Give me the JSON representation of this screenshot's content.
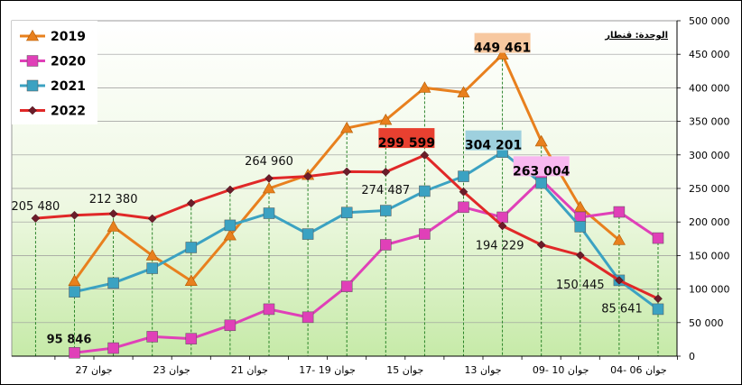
{
  "chart_data": {
    "type": "line",
    "unit_label": "الوحدة: قنطار",
    "y_axis": {
      "min": 0,
      "max": 500000,
      "ticks": [
        "0",
        "50 000",
        "100 000",
        "150 000",
        "200 000",
        "250 000",
        "300 000",
        "350 000",
        "400 000",
        "450 000",
        "500 000"
      ],
      "position": "right"
    },
    "x_axis": {
      "reversed": true,
      "slots": 16,
      "tick_labels": [
        {
          "slot": 1,
          "label": "04- 06 جوان"
        },
        {
          "slot": 3,
          "label": "09- 10 جوان"
        },
        {
          "slot": 5,
          "label": "13 جوان"
        },
        {
          "slot": 7,
          "label": "15 جوان"
        },
        {
          "slot": 9,
          "label": "17- 19 جوان"
        },
        {
          "slot": 11,
          "label": "21 جوان"
        },
        {
          "slot": 13,
          "label": "23 جوان"
        },
        {
          "slot": 15,
          "label": "27 جوان"
        }
      ]
    },
    "grid": true,
    "legend": {
      "placement": "top-left",
      "entries": [
        "2019",
        "2020",
        "2021",
        "2022"
      ]
    },
    "series": [
      {
        "name": "2019",
        "color": "#E8801E",
        "marker": "triangle",
        "points": [
          {
            "slot": 1,
            "value": 173000
          },
          {
            "slot": 2,
            "value": 222000
          },
          {
            "slot": 3,
            "value": 320000
          },
          {
            "slot": 4,
            "value": 449461
          },
          {
            "slot": 5,
            "value": 393000
          },
          {
            "slot": 6,
            "value": 400000
          },
          {
            "slot": 7,
            "value": 352000
          },
          {
            "slot": 8,
            "value": 340000
          },
          {
            "slot": 9,
            "value": 270000
          },
          {
            "slot": 10,
            "value": 250000
          },
          {
            "slot": 11,
            "value": 180000
          },
          {
            "slot": 12,
            "value": 112000
          },
          {
            "slot": 13,
            "value": 150000
          },
          {
            "slot": 14,
            "value": 193000
          },
          {
            "slot": 15,
            "value": 112000
          }
        ]
      },
      {
        "name": "2020",
        "color": "#E040B8",
        "marker": "square",
        "points": [
          {
            "slot": 0,
            "value": 176000
          },
          {
            "slot": 1,
            "value": 215000
          },
          {
            "slot": 2,
            "value": 207000
          },
          {
            "slot": 3,
            "value": 263004
          },
          {
            "slot": 4,
            "value": 207000
          },
          {
            "slot": 5,
            "value": 222000
          },
          {
            "slot": 6,
            "value": 182000
          },
          {
            "slot": 7,
            "value": 166000
          },
          {
            "slot": 8,
            "value": 104000
          },
          {
            "slot": 9,
            "value": 58000
          },
          {
            "slot": 10,
            "value": 70000
          },
          {
            "slot": 11,
            "value": 46000
          },
          {
            "slot": 12,
            "value": 26000
          },
          {
            "slot": 13,
            "value": 29000
          },
          {
            "slot": 14,
            "value": 12000
          },
          {
            "slot": 15,
            "value": 5000
          }
        ]
      },
      {
        "name": "2021",
        "color": "#3BA2C2",
        "marker": "square",
        "points": [
          {
            "slot": 0,
            "value": 70000
          },
          {
            "slot": 1,
            "value": 113000
          },
          {
            "slot": 2,
            "value": 193000
          },
          {
            "slot": 3,
            "value": 258000
          },
          {
            "slot": 4,
            "value": 304201
          },
          {
            "slot": 5,
            "value": 268000
          },
          {
            "slot": 6,
            "value": 246000
          },
          {
            "slot": 7,
            "value": 217000
          },
          {
            "slot": 8,
            "value": 214000
          },
          {
            "slot": 9,
            "value": 182000
          },
          {
            "slot": 10,
            "value": 213000
          },
          {
            "slot": 11,
            "value": 195000
          },
          {
            "slot": 12,
            "value": 162000
          },
          {
            "slot": 13,
            "value": 131000
          },
          {
            "slot": 14,
            "value": 109000
          },
          {
            "slot": 15,
            "value": 95846
          }
        ]
      },
      {
        "name": "2022",
        "color": "#E02828",
        "marker": "diamond",
        "points": [
          {
            "slot": 0,
            "value": 85641
          },
          {
            "slot": 1,
            "value": 113000
          },
          {
            "slot": 2,
            "value": 150445
          },
          {
            "slot": 3,
            "value": 166000
          },
          {
            "slot": 4,
            "value": 194229
          },
          {
            "slot": 5,
            "value": 245000
          },
          {
            "slot": 6,
            "value": 299599
          },
          {
            "slot": 7,
            "value": 274487
          },
          {
            "slot": 8,
            "value": 275000
          },
          {
            "slot": 9,
            "value": 268000
          },
          {
            "slot": 10,
            "value": 264960
          },
          {
            "slot": 11,
            "value": 248000
          },
          {
            "slot": 12,
            "value": 228000
          },
          {
            "slot": 13,
            "value": 205000
          },
          {
            "slot": 14,
            "value": 212380
          },
          {
            "slot": 15,
            "value": 210000
          },
          {
            "slot": 16,
            "value": 205480
          }
        ]
      }
    ],
    "data_labels": [
      {
        "series": "2019",
        "slot": 4,
        "text": "449 461",
        "boxed": true,
        "box_color": "#F7C8A0"
      },
      {
        "series": "2021",
        "slot": 4,
        "text": "304 201",
        "boxed": true,
        "box_color": "#9ED0DE"
      },
      {
        "series": "2020",
        "slot": 3,
        "text": "263 004",
        "boxed": true,
        "box_color": "#F8B8F0"
      },
      {
        "series": "2022",
        "slot": 6,
        "text": "299 599",
        "boxed": true,
        "box_color": "#E84030"
      },
      {
        "series": "2022",
        "slot": 16,
        "text": "205 480",
        "boxed": false
      },
      {
        "series": "2022",
        "slot": 14,
        "text": "212 380",
        "boxed": false
      },
      {
        "series": "2022",
        "slot": 10,
        "text": "264 960",
        "boxed": false
      },
      {
        "series": "2022",
        "slot": 7,
        "text": "274 487",
        "boxed": false
      },
      {
        "series": "2022",
        "slot": 4,
        "text": "194 229",
        "boxed": false
      },
      {
        "series": "2022",
        "slot": 2,
        "text": "150 445",
        "boxed": false
      },
      {
        "series": "2022",
        "slot": 0,
        "text": "85 641",
        "boxed": false
      },
      {
        "series": "2021",
        "slot": 15,
        "text": "95 846",
        "boxed": false,
        "bold": true
      }
    ]
  }
}
